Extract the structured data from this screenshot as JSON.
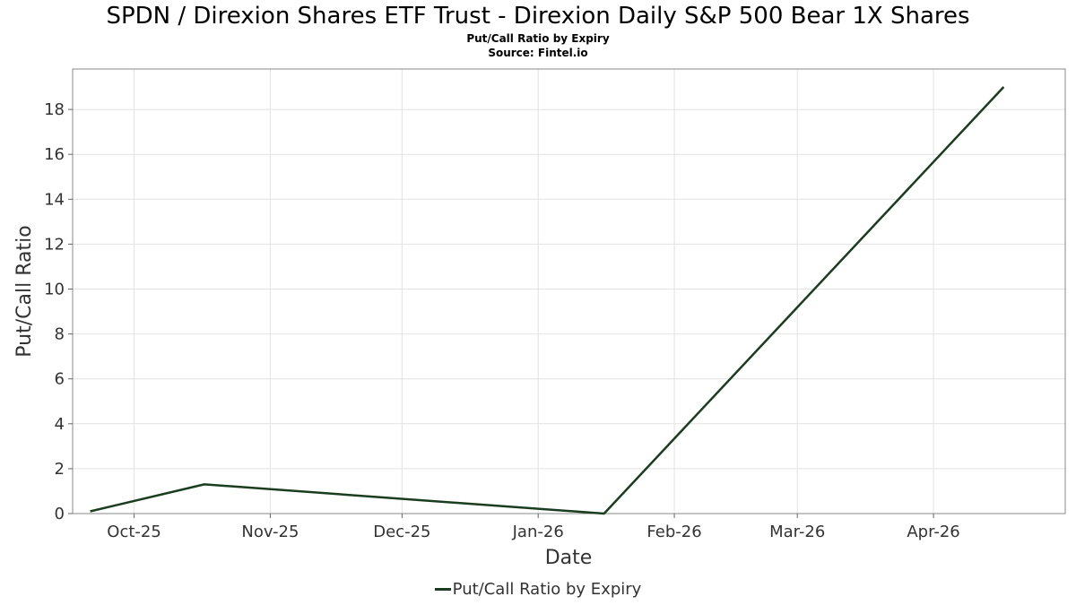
{
  "title": "SPDN / Direxion Shares ETF Trust - Direxion Daily S&P 500 Bear 1X Shares",
  "subtitle": "Put/Call Ratio by Expiry",
  "source": "Source: Fintel.io",
  "chart_data": {
    "type": "line",
    "title": "SPDN / Direxion Shares ETF Trust - Direxion Daily S&P 500 Bear 1X Shares",
    "subtitle": "Put/Call Ratio by Expiry",
    "xlabel": "Date",
    "ylabel": "Put/Call Ratio",
    "x_tick_labels": [
      "Oct-25",
      "Nov-25",
      "Dec-25",
      "Jan-26",
      "Feb-26",
      "Mar-26",
      "Apr-26"
    ],
    "x_ticks": [
      "2025-10-01",
      "2025-11-01",
      "2025-12-01",
      "2026-01-01",
      "2026-02-01",
      "2026-03-01",
      "2026-04-01"
    ],
    "xlim": [
      "2025-09-17",
      "2026-05-01"
    ],
    "ylim": [
      0,
      19.8
    ],
    "y_ticks": [
      0,
      2,
      4,
      6,
      8,
      10,
      12,
      14,
      16,
      18
    ],
    "grid": true,
    "legend": "bottom-center",
    "series": [
      {
        "name": "Put/Call Ratio by Expiry",
        "color": "#1a3d1f",
        "x": [
          "2025-09-21",
          "2025-10-17",
          "2026-01-16",
          "2026-04-17"
        ],
        "y": [
          0.1,
          1.3,
          0.0,
          19.0
        ]
      }
    ]
  }
}
